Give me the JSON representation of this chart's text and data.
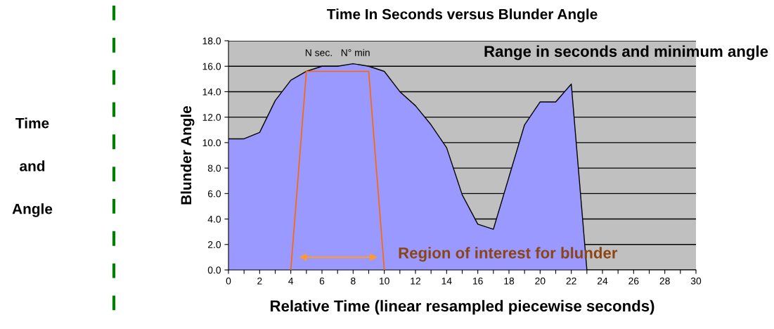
{
  "chart_data": {
    "type": "area",
    "title": "Time In Seconds versus Blunder Angle",
    "xlabel": "Relative Time (linear resampled piecewise seconds)",
    "ylabel": "Blunder Angle",
    "x": [
      0,
      1,
      2,
      3,
      4,
      5,
      6,
      7,
      8,
      9,
      10,
      11,
      12,
      13,
      14,
      15,
      16,
      17,
      18,
      19,
      20,
      21,
      22,
      23
    ],
    "series": [
      {
        "color": "#9999ff",
        "values": [
          10.3,
          10.3,
          10.8,
          13.3,
          14.9,
          15.6,
          16.0,
          16.0,
          16.2,
          16.0,
          15.6,
          14.0,
          12.9,
          11.4,
          9.6,
          5.9,
          3.6,
          3.2,
          7.3,
          11.4,
          13.2,
          13.2,
          14.6,
          0.0
        ]
      },
      {
        "type": "line",
        "name": "Region of interest for blunder",
        "color": "#ff6600",
        "x": [
          4,
          5,
          9,
          10
        ],
        "values": [
          0,
          15.6,
          15.6,
          0
        ]
      }
    ],
    "xlim": [
      0,
      30
    ],
    "ylim": [
      0,
      18
    ],
    "xticks": [
      0,
      {
        "value": 1,
        "label": null
      },
      2,
      {
        "value": 3,
        "label": null
      },
      4,
      {
        "value": 5,
        "label": null
      },
      6,
      {
        "value": 7,
        "label": null
      },
      8,
      {
        "value": 9,
        "label": null
      },
      10,
      {
        "value": 11,
        "label": null
      },
      12,
      {
        "value": 13,
        "label": null
      },
      14,
      {
        "value": 15,
        "label": null
      },
      16,
      {
        "value": 17,
        "label": null
      },
      18,
      {
        "value": 19,
        "label": null
      },
      20,
      {
        "value": 21,
        "label": null
      },
      22,
      {
        "value": 23,
        "label": null
      },
      24,
      {
        "value": 25,
        "label": null
      },
      26,
      {
        "value": 27,
        "label": null
      },
      28,
      {
        "value": 29,
        "label": null
      },
      30
    ],
    "yticks": [
      {
        "value": 0,
        "label": "0.0"
      },
      {
        "value": 2,
        "label": "2.0"
      },
      {
        "value": 4,
        "label": "4.0"
      },
      {
        "value": 6,
        "label": "6.0"
      },
      {
        "value": 8,
        "label": "8.0"
      },
      {
        "value": 10,
        "label": "10.0"
      },
      {
        "value": 12,
        "label": "12.0"
      },
      {
        "value": 14,
        "label": "14.0"
      },
      {
        "value": 16,
        "label": "16.0"
      },
      {
        "value": 18,
        "label": "18.0"
      }
    ],
    "grid": "y",
    "annotations": [
      "N sec.   N° min",
      "Range in seconds and minimum angle",
      "Time",
      "and",
      "Angle"
    ]
  }
}
